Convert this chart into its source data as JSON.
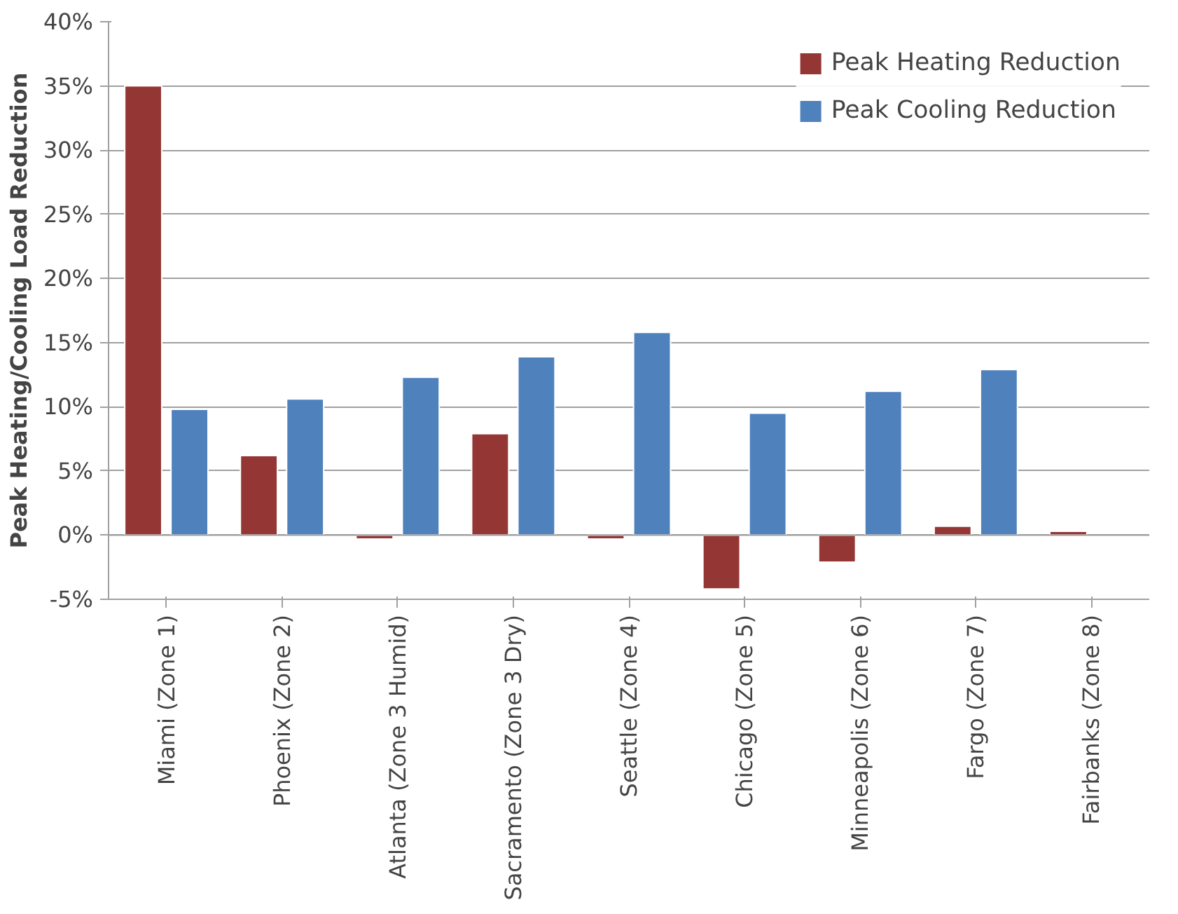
{
  "chart_data": {
    "type": "bar",
    "ylabel": "Peak Heating/Cooling Load Reduction",
    "categories": [
      "Miami (Zone 1)",
      "Phoenix (Zone 2)",
      "Atlanta (Zone 3 Humid)",
      "Sacramento (Zone 3 Dry)",
      "Seattle (Zone 4)",
      "Chicago (Zone 5)",
      "Minneapolis (Zone 6)",
      "Fargo (Zone 7)",
      "Fairbanks (Zone 8)"
    ],
    "series": [
      {
        "name": "Peak Heating Reduction",
        "color": "#943634",
        "values": [
          35.0,
          6.2,
          -0.3,
          7.9,
          -0.3,
          -4.2,
          -2.1,
          0.7,
          0.3
        ]
      },
      {
        "name": "Peak Cooling Reduction",
        "color": "#4f81bd",
        "values": [
          9.8,
          10.6,
          12.3,
          13.9,
          15.8,
          9.5,
          11.2,
          12.9,
          null
        ]
      }
    ],
    "ylim": [
      -5,
      40
    ],
    "yticks": [
      {
        "value": -5,
        "label": "-5%"
      },
      {
        "value": 0,
        "label": "0%"
      },
      {
        "value": 5,
        "label": "5%"
      },
      {
        "value": 10,
        "label": "10%"
      },
      {
        "value": 15,
        "label": "15%"
      },
      {
        "value": 20,
        "label": "20%"
      },
      {
        "value": 25,
        "label": "25%"
      },
      {
        "value": 30,
        "label": "30%"
      },
      {
        "value": 35,
        "label": "35%"
      },
      {
        "value": 40,
        "label": "40%"
      }
    ],
    "grid": "y",
    "legend": "top right"
  }
}
